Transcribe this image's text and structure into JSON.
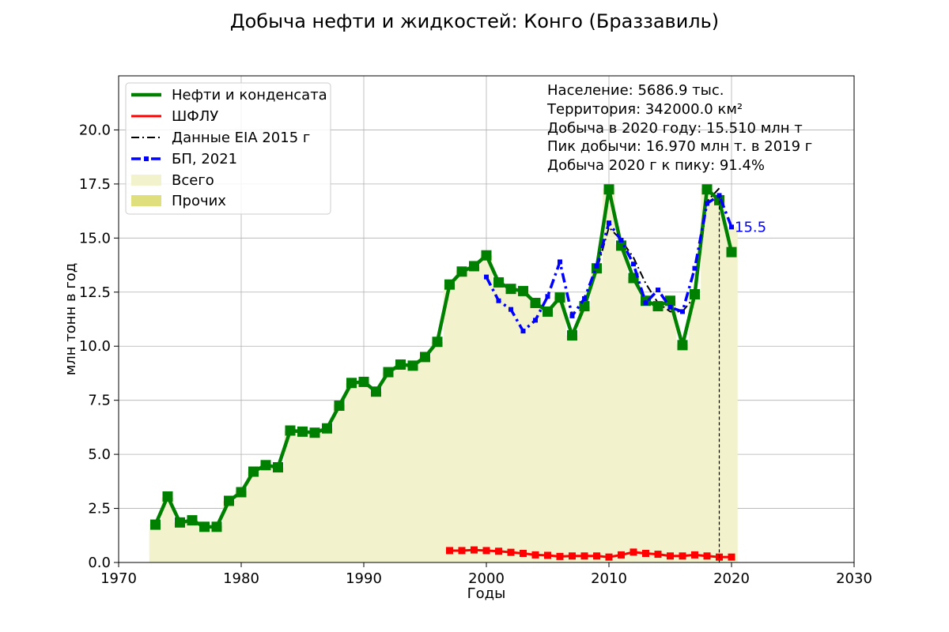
{
  "chart_data": {
    "type": "line",
    "title": "Добыча нефти и жидкостей: Конго (Браззавиль)",
    "xlabel": "Годы",
    "ylabel": "млн тонн в год",
    "xlim": [
      1970,
      2030
    ],
    "ylim": [
      0,
      22.5
    ],
    "x_ticks": [
      1970,
      1980,
      1990,
      2000,
      2010,
      2020,
      2030
    ],
    "x_tick_labels": [
      "1970",
      "1980",
      "1990",
      "2000",
      "2010",
      "2020",
      "2030"
    ],
    "y_ticks": [
      0,
      2.5,
      5,
      7.5,
      10,
      12.5,
      15,
      17.5,
      20
    ],
    "y_tick_labels": [
      "0.0",
      "2.5",
      "5.0",
      "7.5",
      "10.0",
      "12.5",
      "15.0",
      "17.5",
      "20.0"
    ],
    "grid": true,
    "legend_position": "top-left",
    "legend": [
      {
        "label": "Нефти и конденсата",
        "kind": "line",
        "color": "#008000"
      },
      {
        "label": "ШФЛУ",
        "kind": "line",
        "color": "#ff0000"
      },
      {
        "label": "Данные EIA 2015 г",
        "kind": "dashdot",
        "color": "#000000"
      },
      {
        "label": "БП, 2021",
        "kind": "dashdot-marker",
        "color": "#0000ff"
      },
      {
        "label": "Всего",
        "kind": "patch",
        "color": "#f2f2cc"
      },
      {
        "label": "Прочих",
        "kind": "patch",
        "color": "#e0df7d"
      }
    ],
    "info_lines": [
      "Население: 5686.9 тыс.",
      "Территория: 342000.0 км²",
      "Добыча в 2020 году: 15.510 млн т",
      "Пик добычи: 16.970 млн т. в 2019 г",
      "Добыча 2020 г к пику: 91.4%"
    ],
    "annotation": {
      "text": "15.5",
      "x": 2020,
      "y": 15.5,
      "color": "#0000ff"
    },
    "peak_marker": {
      "x": 2019,
      "y": 16.97
    },
    "area_total": {
      "x": [
        1973,
        1974,
        1975,
        1976,
        1977,
        1978,
        1979,
        1980,
        1981,
        1982,
        1983,
        1984,
        1985,
        1986,
        1987,
        1988,
        1989,
        1990,
        1991,
        1992,
        1993,
        1994,
        1995,
        1996,
        1997,
        1998,
        1999,
        2000,
        2001,
        2002,
        2003,
        2004,
        2005,
        2006,
        2007,
        2008,
        2009,
        2010,
        2011,
        2012,
        2013,
        2014,
        2015,
        2016,
        2017,
        2018,
        2019,
        2020
      ],
      "y": [
        1.8,
        3.0,
        1.85,
        1.95,
        1.7,
        1.7,
        2.85,
        3.3,
        4.2,
        4.5,
        4.4,
        6.1,
        6.1,
        6.0,
        6.2,
        7.3,
        8.3,
        8.35,
        7.9,
        8.8,
        9.2,
        9.1,
        9.5,
        10.2,
        12.85,
        13.5,
        13.7,
        14.2,
        12.95,
        12.7,
        12.6,
        12.0,
        11.6,
        12.3,
        10.5,
        11.85,
        13.6,
        17.3,
        14.7,
        13.2,
        12.1,
        11.9,
        12.1,
        10.1,
        12.4,
        17.3,
        16.97,
        15.51
      ]
    },
    "series": [
      {
        "name": "Нефти и конденсата",
        "color": "#008000",
        "style": "solid-square",
        "x": [
          1973,
          1974,
          1975,
          1976,
          1977,
          1978,
          1979,
          1980,
          1981,
          1982,
          1983,
          1984,
          1985,
          1986,
          1987,
          1988,
          1989,
          1990,
          1991,
          1992,
          1993,
          1994,
          1995,
          1996,
          1997,
          1998,
          1999,
          2000,
          2001,
          2002,
          2003,
          2004,
          2005,
          2006,
          2007,
          2008,
          2009,
          2010,
          2011,
          2012,
          2013,
          2014,
          2015,
          2016,
          2017,
          2018,
          2019,
          2020
        ],
        "y": [
          1.75,
          3.05,
          1.85,
          1.95,
          1.65,
          1.65,
          2.85,
          3.25,
          4.2,
          4.5,
          4.4,
          6.1,
          6.05,
          6.0,
          6.2,
          7.25,
          8.3,
          8.35,
          7.9,
          8.8,
          9.15,
          9.1,
          9.5,
          10.2,
          12.85,
          13.45,
          13.7,
          14.2,
          12.95,
          12.65,
          12.55,
          12.0,
          11.6,
          12.25,
          10.5,
          11.85,
          13.6,
          17.25,
          14.65,
          13.15,
          12.1,
          11.85,
          12.1,
          10.05,
          12.4,
          17.25,
          16.75,
          14.35
        ]
      },
      {
        "name": "ШФЛУ",
        "color": "#ff0000",
        "style": "solid-square-small",
        "x": [
          1997,
          1998,
          1999,
          2000,
          2001,
          2002,
          2003,
          2004,
          2005,
          2006,
          2007,
          2008,
          2009,
          2010,
          2011,
          2012,
          2013,
          2014,
          2015,
          2016,
          2017,
          2018,
          2019,
          2020
        ],
        "y": [
          0.55,
          0.55,
          0.58,
          0.55,
          0.52,
          0.47,
          0.42,
          0.35,
          0.33,
          0.28,
          0.3,
          0.3,
          0.3,
          0.25,
          0.35,
          0.48,
          0.42,
          0.38,
          0.3,
          0.3,
          0.35,
          0.3,
          0.25,
          0.25
        ]
      },
      {
        "name": "Данные EIA 2015 г",
        "color": "#000000",
        "style": "dashdot",
        "x": [
          1973,
          1974,
          1975,
          1976,
          1977,
          1978,
          1979,
          1980,
          1981,
          1982,
          1983,
          1984,
          1985,
          1986,
          1987,
          1988,
          1989,
          1990,
          1991,
          1992,
          1993,
          1994,
          1995,
          1996,
          1997,
          1998,
          1999,
          2000,
          2001,
          2002,
          2003,
          2004,
          2005,
          2006,
          2007,
          2008,
          2009,
          2010,
          2011,
          2012,
          2013,
          2014,
          2015,
          2016,
          2017,
          2018,
          2019
        ],
        "y": [
          1.75,
          3.05,
          1.85,
          1.95,
          1.65,
          1.65,
          2.85,
          3.25,
          4.2,
          4.5,
          4.4,
          6.1,
          6.05,
          6.0,
          6.2,
          7.25,
          8.3,
          8.35,
          7.9,
          8.8,
          9.15,
          9.1,
          9.5,
          10.2,
          12.85,
          13.45,
          13.7,
          14.2,
          12.95,
          12.65,
          12.55,
          12.0,
          11.6,
          12.25,
          10.5,
          11.85,
          13.5,
          15.5,
          14.9,
          14.1,
          12.9,
          12.0,
          11.6,
          11.6,
          12.3,
          16.7,
          17.3
        ]
      },
      {
        "name": "БП, 2021",
        "color": "#0000ff",
        "style": "dashdot-marker",
        "x": [
          2000,
          2001,
          2002,
          2003,
          2004,
          2005,
          2006,
          2007,
          2008,
          2009,
          2010,
          2011,
          2012,
          2013,
          2014,
          2015,
          2016,
          2017,
          2018,
          2019,
          2020
        ],
        "y": [
          13.2,
          12.1,
          11.7,
          10.7,
          11.2,
          12.3,
          13.9,
          11.4,
          12.2,
          13.7,
          15.7,
          14.9,
          13.8,
          12.0,
          12.6,
          11.8,
          11.6,
          13.6,
          16.6,
          16.97,
          15.51
        ]
      }
    ]
  }
}
